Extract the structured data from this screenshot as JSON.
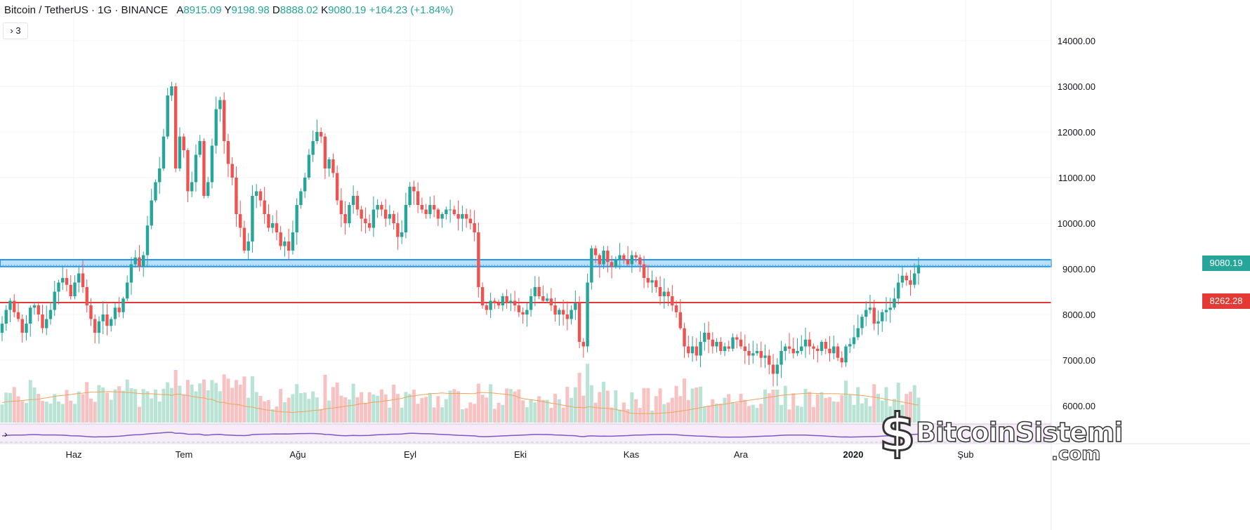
{
  "header": {
    "symbol": "Bitcoin / TetherUS · 1G · BINANCE",
    "open_label": "A",
    "open": "8915.09",
    "high_label": "Y",
    "high": "9198.98",
    "low_label": "D",
    "low": "8888.02",
    "close_label": "K",
    "close": "9080.19",
    "change": "+164.23 (+1.84%)"
  },
  "indicator_toggle": {
    "icon": "chevron-right-icon",
    "count": "3"
  },
  "oscillator_toggle": {
    "icon": "chevron-right-icon"
  },
  "price_tags": {
    "current": "9080.19",
    "support": "8262.28"
  },
  "watermark": {
    "brand": "BitcoinSistemi",
    "domain": ".com"
  },
  "colors": {
    "up": "#26a69a",
    "down": "#ef5350",
    "zone": "#2196f3",
    "support_line": "#e53935",
    "ma": "#f0a35a",
    "osc": "#7e57c2"
  },
  "chart_data": {
    "type": "candlestick",
    "title": "Bitcoin / TetherUS · 1G · BINANCE",
    "y_axis": {
      "range": [
        5700,
        14600
      ],
      "ticks": [
        "14000.00",
        "13000.00",
        "12000.00",
        "11000.00",
        "10000.00",
        "9000.00",
        "8000.00",
        "7000.00",
        "6000.00"
      ]
    },
    "x_axis": {
      "labels": [
        "Haz",
        "Tem",
        "Ağu",
        "Eyl",
        "Eki",
        "Kas",
        "Ara",
        "2020",
        "Şub"
      ]
    },
    "resistance_zone": [
      9050,
      9200
    ],
    "support_level": 8262.28,
    "last_close": 9080.19,
    "closes": [
      7800,
      8100,
      8300,
      8050,
      7900,
      7600,
      7800,
      8150,
      8200,
      8000,
      7700,
      7900,
      8100,
      8500,
      8700,
      8800,
      8650,
      8400,
      8700,
      8900,
      8600,
      8200,
      7900,
      7600,
      7850,
      8000,
      7750,
      7900,
      8150,
      8050,
      8350,
      8700,
      9100,
      9250,
      9050,
      9300,
      9950,
      10500,
      10900,
      11200,
      11900,
      12800,
      13000,
      11200,
      11900,
      11600,
      10700,
      10900,
      11500,
      11800,
      10600,
      10900,
      11700,
      12500,
      12700,
      11800,
      11300,
      11000,
      10200,
      9900,
      9400,
      9600,
      10600,
      10700,
      10500,
      10200,
      9900,
      10000,
      9800,
      9500,
      9600,
      9400,
      9800,
      10400,
      10700,
      11000,
      11500,
      11800,
      12000,
      11900,
      11200,
      11400,
      11100,
      10500,
      10200,
      10000,
      10400,
      10600,
      10300,
      10100,
      10000,
      9900,
      10300,
      10400,
      10300,
      10100,
      10200,
      10000,
      9700,
      9800,
      10400,
      10800,
      10700,
      10400,
      10300,
      10200,
      10400,
      10300,
      10100,
      10200,
      10300,
      10300,
      10200,
      10100,
      10200,
      10100,
      10000,
      9800,
      8600,
      8200,
      8100,
      8300,
      8250,
      8200,
      8400,
      8250,
      8300,
      8200,
      8050,
      8000,
      8100,
      8400,
      8600,
      8400,
      8300,
      8350,
      8200,
      8000,
      8100,
      8000,
      7900,
      8100,
      8250,
      7400,
      7300,
      8700,
      9450,
      9300,
      9100,
      9400,
      9150,
      9050,
      9200,
      9300,
      9200,
      9100,
      9300,
      9250,
      9100,
      8800,
      8700,
      8750,
      8600,
      8400,
      8500,
      8400,
      8200,
      8050,
      7700,
      7300,
      7150,
      7300,
      7100,
      7400,
      7600,
      7450,
      7300,
      7400,
      7200,
      7300,
      7250,
      7500,
      7450,
      7300,
      7200,
      7100,
      7150,
      7200,
      7050,
      7100,
      6900,
      6700,
      6900,
      7200,
      7300,
      7250,
      7150,
      7200,
      7300,
      7450,
      7300,
      7250,
      7200,
      7400,
      7250,
      7150,
      7300,
      7050,
      6950,
      7300,
      7350,
      7500,
      7700,
      7950,
      8100,
      8150,
      7800,
      7850,
      8050,
      8100,
      8150,
      8350,
      8700,
      8850,
      8750,
      8650,
      8900,
      9080.19
    ],
    "volume_moving_average": "orange line",
    "oscillator_pane": "purple line"
  }
}
